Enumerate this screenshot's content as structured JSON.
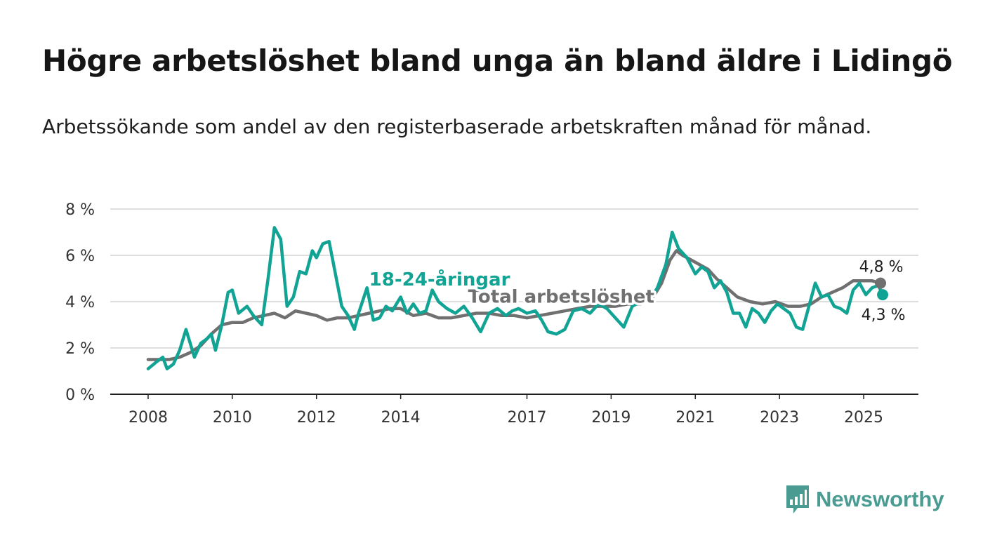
{
  "title": "Högre arbetslöshet bland unga än bland äldre i Lidingö",
  "subtitle": "Arbetssökande som andel av den registerbaserade arbetskraften månad för månad.",
  "brand": {
    "name": "Newsworthy",
    "icon": "bar-chart-speech-bubble-icon",
    "color": "#4a9b92"
  },
  "chart_data": {
    "type": "line",
    "x_ticks": [
      "2008",
      "2010",
      "2012",
      "2014",
      "2017",
      "2019",
      "2021",
      "2023",
      "2025"
    ],
    "y_ticks": [
      "0 %",
      "2 %",
      "4 %",
      "6 %",
      "8 %"
    ],
    "ylim": [
      0,
      8
    ],
    "xlim": [
      2007.1,
      2026.3
    ],
    "grid": true,
    "series": [
      {
        "name": "Total arbetslöshet",
        "color": "#707070",
        "end_label": "4,8 %",
        "points": [
          [
            2008.0,
            1.5
          ],
          [
            2008.3,
            1.5
          ],
          [
            2008.5,
            1.5
          ],
          [
            2008.75,
            1.6
          ],
          [
            2009.0,
            1.8
          ],
          [
            2009.25,
            2.1
          ],
          [
            2009.5,
            2.6
          ],
          [
            2009.75,
            3.0
          ],
          [
            2010.0,
            3.1
          ],
          [
            2010.25,
            3.1
          ],
          [
            2010.5,
            3.3
          ],
          [
            2010.75,
            3.4
          ],
          [
            2011.0,
            3.5
          ],
          [
            2011.25,
            3.3
          ],
          [
            2011.5,
            3.6
          ],
          [
            2011.75,
            3.5
          ],
          [
            2012.0,
            3.4
          ],
          [
            2012.25,
            3.2
          ],
          [
            2012.5,
            3.3
          ],
          [
            2012.75,
            3.3
          ],
          [
            2013.0,
            3.4
          ],
          [
            2013.25,
            3.5
          ],
          [
            2013.5,
            3.6
          ],
          [
            2013.75,
            3.7
          ],
          [
            2014.0,
            3.7
          ],
          [
            2014.3,
            3.4
          ],
          [
            2014.6,
            3.5
          ],
          [
            2014.9,
            3.3
          ],
          [
            2015.2,
            3.3
          ],
          [
            2015.5,
            3.4
          ],
          [
            2015.8,
            3.5
          ],
          [
            2016.1,
            3.5
          ],
          [
            2016.4,
            3.4
          ],
          [
            2016.7,
            3.4
          ],
          [
            2017.0,
            3.3
          ],
          [
            2017.3,
            3.4
          ],
          [
            2017.6,
            3.5
          ],
          [
            2017.9,
            3.6
          ],
          [
            2018.2,
            3.7
          ],
          [
            2018.5,
            3.8
          ],
          [
            2018.8,
            3.8
          ],
          [
            2019.1,
            3.8
          ],
          [
            2019.4,
            3.9
          ],
          [
            2019.7,
            3.9
          ],
          [
            2020.0,
            4.2
          ],
          [
            2020.2,
            4.8
          ],
          [
            2020.4,
            5.8
          ],
          [
            2020.55,
            6.2
          ],
          [
            2020.7,
            6.0
          ],
          [
            2021.0,
            5.7
          ],
          [
            2021.3,
            5.4
          ],
          [
            2021.5,
            5.0
          ],
          [
            2021.75,
            4.6
          ],
          [
            2022.0,
            4.2
          ],
          [
            2022.3,
            4.0
          ],
          [
            2022.6,
            3.9
          ],
          [
            2022.9,
            4.0
          ],
          [
            2023.2,
            3.8
          ],
          [
            2023.5,
            3.8
          ],
          [
            2023.75,
            3.9
          ],
          [
            2024.0,
            4.2
          ],
          [
            2024.25,
            4.4
          ],
          [
            2024.5,
            4.6
          ],
          [
            2024.75,
            4.9
          ],
          [
            2025.0,
            4.9
          ],
          [
            2025.2,
            4.9
          ],
          [
            2025.4,
            4.8
          ]
        ]
      },
      {
        "name": "18-24-åringar",
        "color": "#11a394",
        "end_label": "4,3 %",
        "points": [
          [
            2008.0,
            1.1
          ],
          [
            2008.2,
            1.4
          ],
          [
            2008.35,
            1.6
          ],
          [
            2008.45,
            1.1
          ],
          [
            2008.6,
            1.3
          ],
          [
            2008.75,
            1.9
          ],
          [
            2008.9,
            2.8
          ],
          [
            2009.1,
            1.6
          ],
          [
            2009.25,
            2.2
          ],
          [
            2009.4,
            2.4
          ],
          [
            2009.5,
            2.6
          ],
          [
            2009.6,
            1.9
          ],
          [
            2009.75,
            3.0
          ],
          [
            2009.9,
            4.4
          ],
          [
            2010.0,
            4.5
          ],
          [
            2010.15,
            3.5
          ],
          [
            2010.35,
            3.8
          ],
          [
            2010.5,
            3.4
          ],
          [
            2010.7,
            3.0
          ],
          [
            2010.85,
            5.0
          ],
          [
            2011.0,
            7.2
          ],
          [
            2011.15,
            6.7
          ],
          [
            2011.3,
            3.8
          ],
          [
            2011.45,
            4.2
          ],
          [
            2011.6,
            5.3
          ],
          [
            2011.75,
            5.2
          ],
          [
            2011.9,
            6.2
          ],
          [
            2012.0,
            5.9
          ],
          [
            2012.15,
            6.5
          ],
          [
            2012.3,
            6.6
          ],
          [
            2012.45,
            5.2
          ],
          [
            2012.6,
            3.8
          ],
          [
            2012.75,
            3.4
          ],
          [
            2012.9,
            2.8
          ],
          [
            2013.0,
            3.5
          ],
          [
            2013.2,
            4.6
          ],
          [
            2013.35,
            3.2
          ],
          [
            2013.5,
            3.3
          ],
          [
            2013.65,
            3.8
          ],
          [
            2013.8,
            3.6
          ],
          [
            2014.0,
            4.2
          ],
          [
            2014.15,
            3.5
          ],
          [
            2014.3,
            3.9
          ],
          [
            2014.45,
            3.5
          ],
          [
            2014.6,
            3.6
          ],
          [
            2014.75,
            4.5
          ],
          [
            2014.9,
            4.0
          ],
          [
            2015.1,
            3.7
          ],
          [
            2015.3,
            3.5
          ],
          [
            2015.5,
            3.8
          ],
          [
            2015.7,
            3.3
          ],
          [
            2015.9,
            2.7
          ],
          [
            2016.1,
            3.5
          ],
          [
            2016.3,
            3.7
          ],
          [
            2016.5,
            3.4
          ],
          [
            2016.65,
            3.6
          ],
          [
            2016.8,
            3.7
          ],
          [
            2017.0,
            3.5
          ],
          [
            2017.2,
            3.6
          ],
          [
            2017.35,
            3.2
          ],
          [
            2017.5,
            2.7
          ],
          [
            2017.7,
            2.6
          ],
          [
            2017.9,
            2.8
          ],
          [
            2018.1,
            3.6
          ],
          [
            2018.3,
            3.7
          ],
          [
            2018.5,
            3.5
          ],
          [
            2018.7,
            3.9
          ],
          [
            2018.9,
            3.7
          ],
          [
            2019.1,
            3.3
          ],
          [
            2019.3,
            2.9
          ],
          [
            2019.5,
            3.8
          ],
          [
            2019.7,
            4.0
          ],
          [
            2019.9,
            4.0
          ],
          [
            2020.1,
            4.6
          ],
          [
            2020.3,
            5.6
          ],
          [
            2020.45,
            7.0
          ],
          [
            2020.6,
            6.3
          ],
          [
            2020.8,
            5.9
          ],
          [
            2021.0,
            5.2
          ],
          [
            2021.15,
            5.5
          ],
          [
            2021.3,
            5.3
          ],
          [
            2021.45,
            4.6
          ],
          [
            2021.6,
            4.9
          ],
          [
            2021.75,
            4.4
          ],
          [
            2021.9,
            3.5
          ],
          [
            2022.05,
            3.5
          ],
          [
            2022.2,
            2.9
          ],
          [
            2022.35,
            3.7
          ],
          [
            2022.5,
            3.5
          ],
          [
            2022.65,
            3.1
          ],
          [
            2022.8,
            3.6
          ],
          [
            2022.95,
            3.9
          ],
          [
            2023.1,
            3.7
          ],
          [
            2023.25,
            3.5
          ],
          [
            2023.4,
            2.9
          ],
          [
            2023.55,
            2.8
          ],
          [
            2023.7,
            3.8
          ],
          [
            2023.85,
            4.8
          ],
          [
            2024.0,
            4.2
          ],
          [
            2024.15,
            4.3
          ],
          [
            2024.3,
            3.8
          ],
          [
            2024.45,
            3.7
          ],
          [
            2024.6,
            3.5
          ],
          [
            2024.75,
            4.5
          ],
          [
            2024.9,
            4.8
          ],
          [
            2025.05,
            4.3
          ],
          [
            2025.2,
            4.6
          ],
          [
            2025.35,
            4.7
          ],
          [
            2025.45,
            4.3
          ]
        ]
      }
    ]
  }
}
